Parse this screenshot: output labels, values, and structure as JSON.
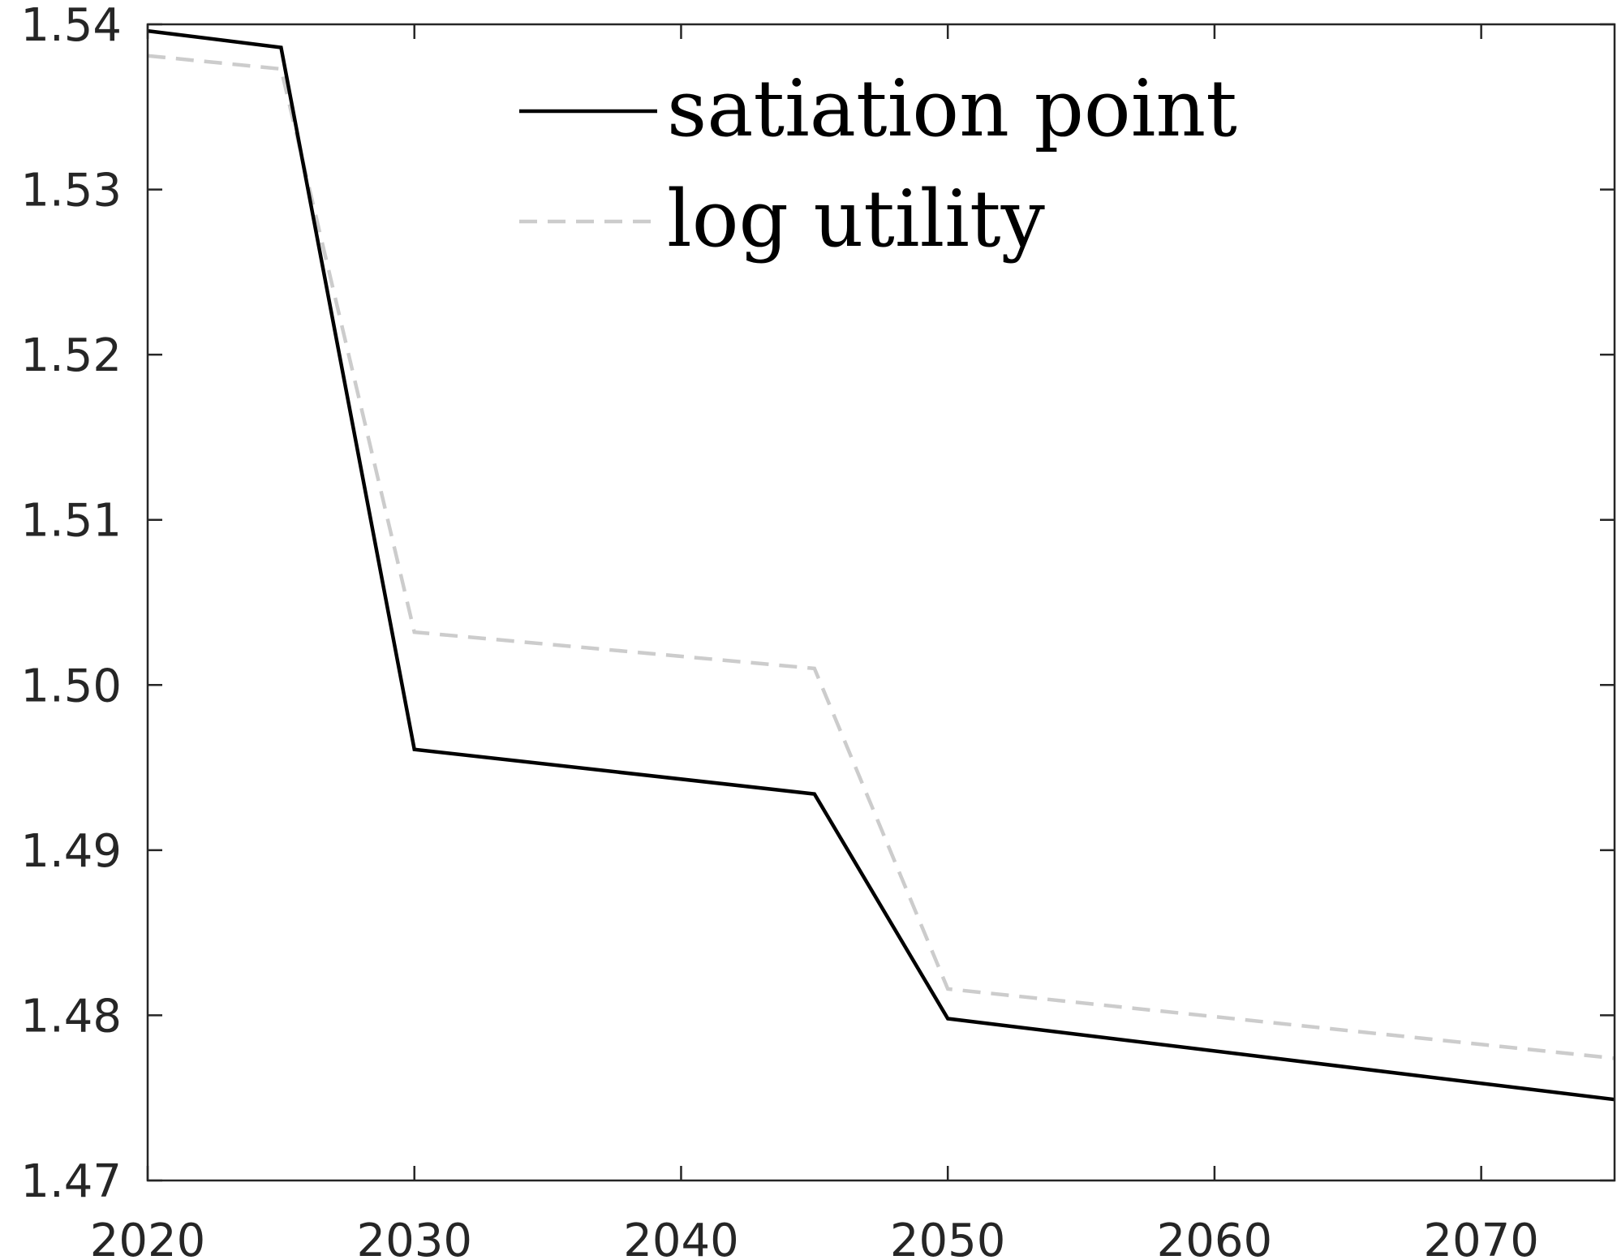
{
  "chart_data": {
    "type": "line",
    "title": "",
    "xlabel": "",
    "ylabel": "",
    "xlim": [
      2020,
      2075
    ],
    "ylim": [
      1.47,
      1.54
    ],
    "x_ticks": [
      2020,
      2030,
      2040,
      2050,
      2060,
      2070
    ],
    "x_tick_labels": [
      "2020",
      "2030",
      "2040",
      "2050",
      "2060",
      "2070"
    ],
    "y_ticks": [
      1.47,
      1.48,
      1.49,
      1.5,
      1.51,
      1.52,
      1.53,
      1.54
    ],
    "y_tick_labels": [
      "1.47",
      "1.48",
      "1.49",
      "1.50",
      "1.51",
      "1.52",
      "1.53",
      "1.54"
    ],
    "grid": false,
    "legend": {
      "placement": "top-center",
      "entries": [
        "satiation point",
        "log utility"
      ]
    },
    "series": [
      {
        "name": "satiation point",
        "color": "#000000",
        "style": "solid",
        "x": [
          2020,
          2025,
          2030,
          2045,
          2050,
          2075
        ],
        "values": [
          1.5396,
          1.5386,
          1.4961,
          1.4934,
          1.4798,
          1.4749
        ]
      },
      {
        "name": "log utility",
        "color": "#cccccc",
        "style": "dashed",
        "x": [
          2020,
          2025,
          2030,
          2045,
          2050,
          2075
        ],
        "values": [
          1.5381,
          1.5373,
          1.5032,
          1.501,
          1.4816,
          1.4774
        ]
      }
    ]
  }
}
